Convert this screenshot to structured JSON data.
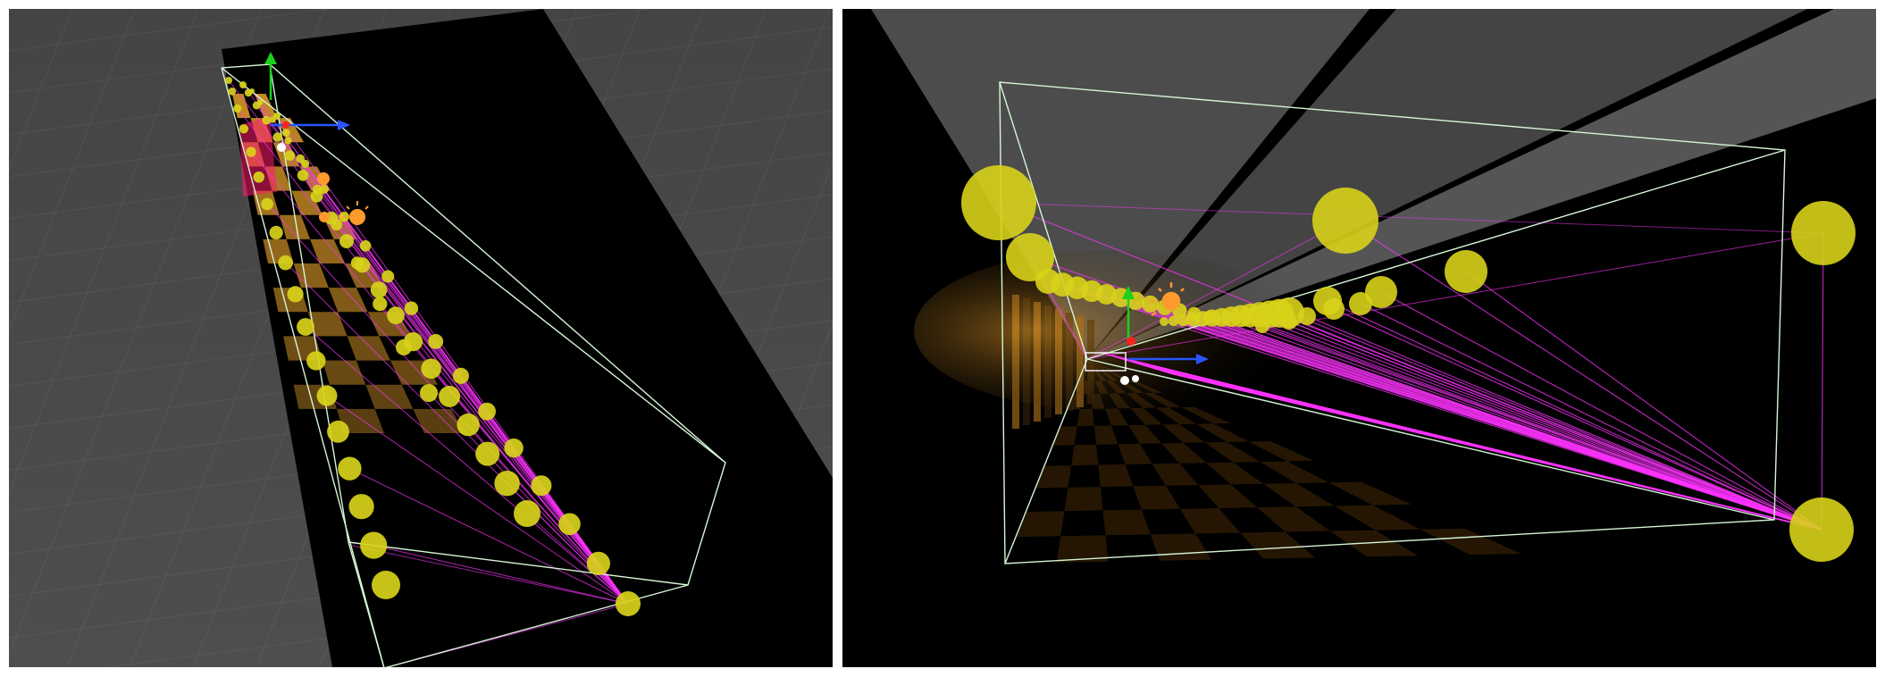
{
  "viewports": [
    {
      "id": "scene-view-perspective-left",
      "camera": "perspective"
    },
    {
      "id": "scene-view-perspective-right",
      "camera": "perspective"
    }
  ],
  "colors": {
    "background": "#000000",
    "floor_grid": "#4a4a4a",
    "grid_line": "#6b6b6b",
    "bounds_wireframe": "#d6f5d6",
    "light_probe": "#d8d21a",
    "probe_connection": "#ff33ff",
    "checker_light": "#e3a02a",
    "checker_dark": "#2b1a05",
    "axis_x": "#2a55ff",
    "axis_y": "#1bd11b",
    "axis_z": "#ff2222",
    "sun_icon": "#ff9a2e"
  },
  "icons": [
    "light-probe-sphere",
    "sun-light-icon",
    "transform-gizmo-icon",
    "bounding-box-wireframe"
  ]
}
